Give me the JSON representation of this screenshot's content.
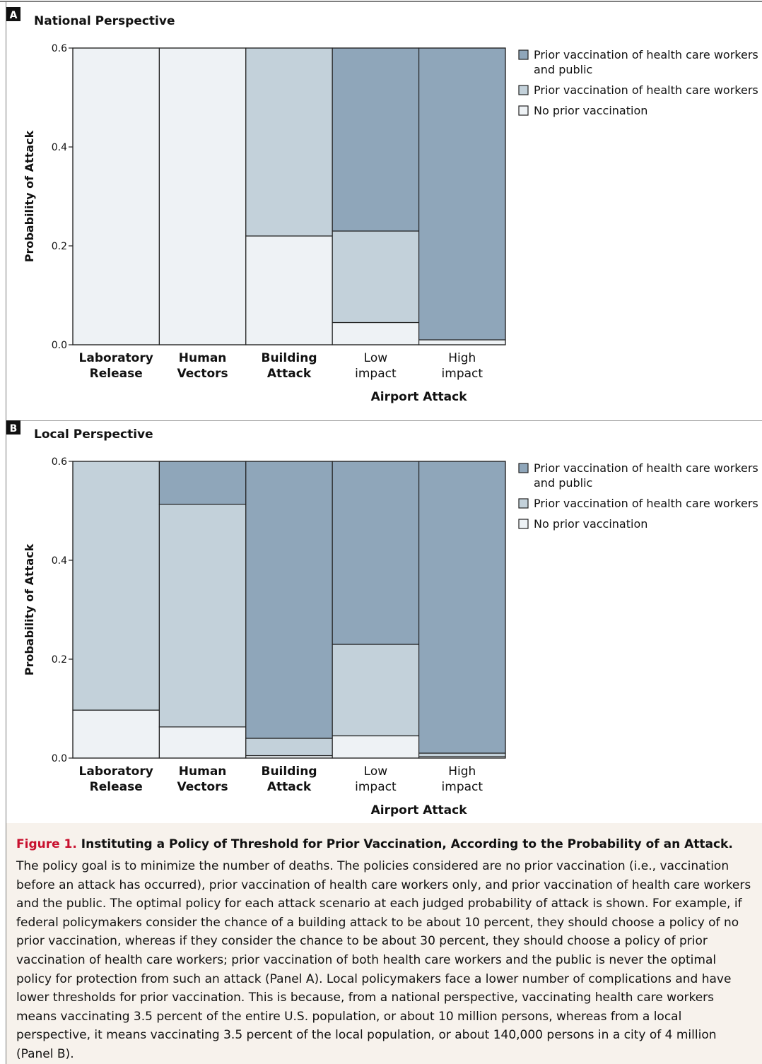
{
  "categories": [
    {
      "line1": "Laboratory",
      "line2": "Release",
      "bold": true
    },
    {
      "line1": "Human",
      "line2": "Vectors",
      "bold": true
    },
    {
      "line1": "Building",
      "line2": "Attack",
      "bold": true
    },
    {
      "line1": "Low",
      "line2": "impact",
      "bold": false
    },
    {
      "line1": "High",
      "line2": "impact",
      "bold": false
    }
  ],
  "group_label": "Airport Attack",
  "legend": [
    {
      "line1": "Prior vaccination of health care workers",
      "line2": "and public",
      "color": "#8fa6ba"
    },
    {
      "line1": "Prior vaccination of health care workers",
      "line2": "",
      "color": "#c3d1da"
    },
    {
      "line1": "No prior vaccination",
      "line2": "",
      "color": "#eef2f5"
    }
  ],
  "chart_data": [
    {
      "panel": "A",
      "title": "National Perspective",
      "type": "bar",
      "stacked": true,
      "ylabel": "Probability of Attack",
      "ylim": [
        0,
        0.6
      ],
      "yticks": [
        "0.0",
        "0.2",
        "0.4",
        "0.6"
      ],
      "categories": [
        "Laboratory Release",
        "Human Vectors",
        "Building Attack",
        "Airport Attack: Low impact",
        "Airport Attack: High impact"
      ],
      "series": [
        {
          "name": "No prior vaccination",
          "values": [
            0.6,
            0.6,
            0.22,
            0.045,
            0.01
          ]
        },
        {
          "name": "Prior vaccination of health care workers",
          "values": [
            0,
            0,
            0.38,
            0.185,
            0.0
          ]
        },
        {
          "name": "Prior vaccination of health care workers and public",
          "values": [
            0,
            0,
            0,
            0.37,
            0.59
          ]
        }
      ]
    },
    {
      "panel": "B",
      "title": "Local Perspective",
      "type": "bar",
      "stacked": true,
      "ylabel": "Probability of Attack",
      "ylim": [
        0,
        0.6
      ],
      "yticks": [
        "0.0",
        "0.2",
        "0.4",
        "0.6"
      ],
      "categories": [
        "Laboratory Release",
        "Human Vectors",
        "Building Attack",
        "Airport Attack: Low impact",
        "Airport Attack: High impact"
      ],
      "series": [
        {
          "name": "No prior vaccination",
          "values": [
            0.097,
            0.063,
            0.005,
            0.045,
            0.003
          ]
        },
        {
          "name": "Prior vaccination of health care workers",
          "values": [
            0.503,
            0.45,
            0.035,
            0.185,
            0.007
          ]
        },
        {
          "name": "Prior vaccination of health care workers and public",
          "values": [
            0,
            0.087,
            0.56,
            0.37,
            0.59
          ]
        }
      ]
    }
  ],
  "caption": {
    "label": "Figure 1.",
    "title": " Instituting a Policy of Threshold for Prior Vaccination, According to the Probability of an Attack.",
    "body": "The policy goal is to minimize the number of deaths. The policies considered are no prior vaccination (i.e., vaccination before an attack has occurred), prior vaccination of health care workers only, and prior vaccination of health care workers and the public. The optimal policy for each attack scenario at each judged probability of attack is shown. For example, if federal policymakers consider the chance of a building attack to be about 10 percent, they should choose a policy of no prior vaccination, whereas if they consider the chance to be about 30 percent, they should choose a policy of prior vaccination of health care workers; prior vaccination of both health care workers and the public is never the optimal policy for protection from such an attack (Panel A). Local policymakers face a lower number of complications and have lower thresholds for prior vaccination. This is because, from a national perspective, vaccinating health care workers means vaccinating 3.5 percent of the entire U.S. population, or about 10 million persons, whereas from a local perspective, it means vaccinating 3.5 percent of the local population, or about 140,000 persons in a city of 4 million (Panel B)."
  }
}
